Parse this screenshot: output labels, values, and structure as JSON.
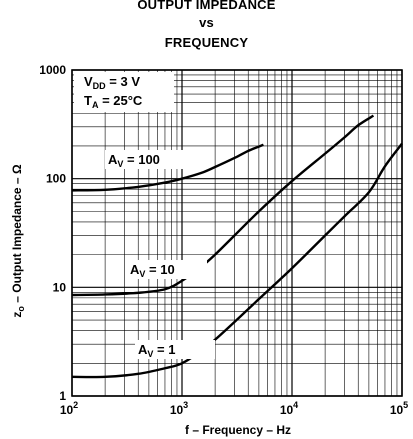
{
  "chart_data": {
    "type": "line",
    "title": [
      "OUTPUT IMPEDANCE",
      "vs",
      "FREQUENCY"
    ],
    "xlabel": "f – Frequency – Hz",
    "ylabel": "z",
    "ylabel_sub": "o",
    "ylabel_rest": " – Output Impedance – Ω",
    "x_scale": "log",
    "y_scale": "log",
    "xlim": [
      100,
      100000
    ],
    "ylim": [
      1,
      1000
    ],
    "x_ticks": [
      {
        "value": 100,
        "base": "10",
        "exp": "2"
      },
      {
        "value": 1000,
        "base": "10",
        "exp": "3"
      },
      {
        "value": 10000,
        "base": "10",
        "exp": "4"
      },
      {
        "value": 100000,
        "base": "10",
        "exp": "5"
      }
    ],
    "y_ticks": [
      {
        "value": 1,
        "label": "1"
      },
      {
        "value": 10,
        "label": "10"
      },
      {
        "value": 100,
        "label": "100"
      },
      {
        "value": 1000,
        "label": "1000"
      }
    ],
    "grid": true,
    "conditions": [
      {
        "main": "V",
        "sub": "DD",
        "rest": " = 3 V"
      },
      {
        "main": "T",
        "sub": "A",
        "rest": " = 25°C"
      }
    ],
    "series": [
      {
        "label_main": "A",
        "label_sub": "V",
        "label_rest": " = 100",
        "points": [
          [
            100,
            78
          ],
          [
            200,
            79
          ],
          [
            400,
            84
          ],
          [
            700,
            92
          ],
          [
            1000,
            100
          ],
          [
            1500,
            113
          ],
          [
            2000,
            128
          ],
          [
            3000,
            155
          ],
          [
            4000,
            180
          ],
          [
            5500,
            205
          ]
        ]
      },
      {
        "label_main": "A",
        "label_sub": "V",
        "label_rest": " = 10",
        "points": [
          [
            100,
            8.5
          ],
          [
            200,
            8.6
          ],
          [
            400,
            8.9
          ],
          [
            700,
            9.6
          ],
          [
            1000,
            11.5
          ],
          [
            1500,
            15.5
          ],
          [
            2000,
            20
          ],
          [
            3000,
            30
          ],
          [
            5000,
            50
          ],
          [
            10000,
            95
          ],
          [
            20000,
            170
          ],
          [
            30000,
            240
          ],
          [
            40000,
            310
          ],
          [
            55000,
            380
          ]
        ]
      },
      {
        "label_main": "A",
        "label_sub": "V",
        "label_rest": " = 1",
        "points": [
          [
            100,
            1.5
          ],
          [
            200,
            1.5
          ],
          [
            400,
            1.6
          ],
          [
            700,
            1.8
          ],
          [
            1000,
            2.0
          ],
          [
            1500,
            2.6
          ],
          [
            2000,
            3.3
          ],
          [
            3000,
            4.8
          ],
          [
            5000,
            7.8
          ],
          [
            10000,
            15
          ],
          [
            20000,
            30
          ],
          [
            30000,
            45
          ],
          [
            50000,
            75
          ],
          [
            70000,
            130
          ],
          [
            100000,
            210
          ]
        ]
      }
    ]
  }
}
